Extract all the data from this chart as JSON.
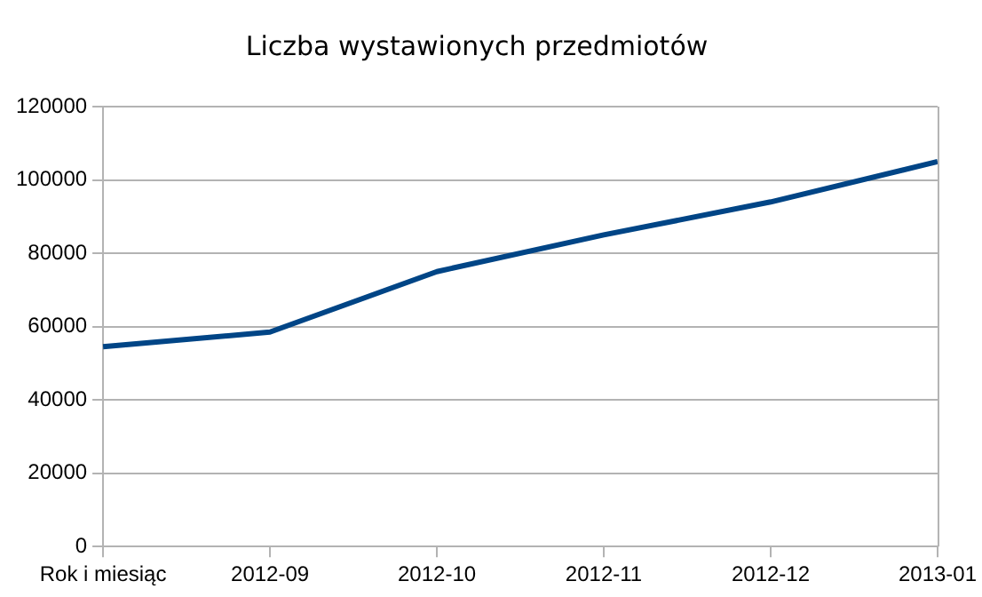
{
  "chart_data": {
    "type": "line",
    "title": "Liczba wystawionych przedmiotów",
    "categories": [
      "Rok i miesiąc",
      "2012-09",
      "2012-10",
      "2012-11",
      "2012-12",
      "2013-01"
    ],
    "series": [
      {
        "color": "#004586",
        "values": [
          54500,
          58500,
          75000,
          85000,
          94000,
          105000
        ]
      }
    ],
    "ylim": [
      0,
      120000
    ],
    "yticks": [
      0,
      20000,
      40000,
      60000,
      80000,
      100000,
      120000
    ],
    "grid": "y",
    "legend": false,
    "marker": "none",
    "line_style": "solid"
  }
}
